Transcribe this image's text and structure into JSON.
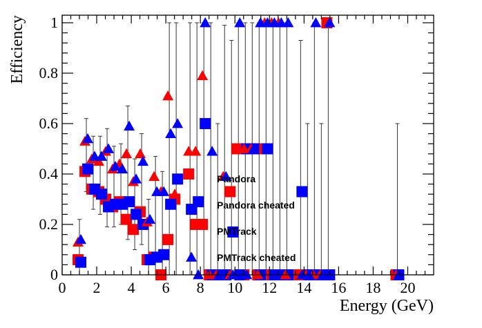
{
  "chart_data": {
    "type": "scatter",
    "title": "",
    "xlabel": "Energy (GeV)",
    "ylabel": "Efficiency",
    "xlim": [
      0,
      21.5
    ],
    "ylim": [
      0,
      1.03
    ],
    "xticks": [
      0,
      2,
      4,
      6,
      8,
      10,
      12,
      14,
      16,
      18,
      20
    ],
    "xtick_labels": [
      "0",
      "2",
      "4",
      "6",
      "8",
      "10",
      "12",
      "14",
      "16",
      "18",
      "20"
    ],
    "yticks": [
      0,
      0.2,
      0.4,
      0.6,
      0.8,
      1
    ],
    "ytick_labels": [
      "0",
      "0.2",
      "0.4",
      "0.6",
      "0.8",
      "1"
    ],
    "grid": false,
    "legend_position": "center",
    "series": [
      {
        "name": "Pandora",
        "marker": "triangle",
        "color": "#ff0000",
        "x": [
          1.0,
          1.4,
          1.8,
          2.2,
          2.6,
          3.0,
          3.4,
          3.8,
          4.2,
          4.6,
          5.0,
          5.4,
          5.8,
          6.2,
          6.6,
          7.4,
          7.8,
          8.2,
          8.6,
          9.0,
          9.4,
          9.8,
          10.2,
          10.6,
          11.0,
          11.4,
          11.8,
          12.2,
          12.6,
          13.0,
          13.8,
          14.2,
          14.6,
          15.0,
          15.4,
          19.4
        ],
        "y": [
          0.13,
          0.53,
          0.46,
          0.45,
          0.49,
          0.42,
          0.44,
          0.48,
          0.37,
          0.48,
          0.21,
          0.39,
          0.33,
          0.71,
          0.32,
          0.49,
          0.49,
          0.79,
          0.0,
          0.0,
          0.39,
          0.0,
          0.5,
          0.5,
          0.5,
          0.0,
          1.0,
          1.0,
          1.0,
          0.0,
          0.0,
          0.0,
          0.0,
          0.0,
          1.0,
          0.0
        ]
      },
      {
        "name": "Pandora cheated",
        "marker": "triangle",
        "color": "#0000ff",
        "x": [
          1.0,
          1.4,
          1.8,
          2.2,
          2.6,
          3.0,
          3.4,
          3.8,
          4.2,
          4.6,
          5.0,
          5.4,
          5.8,
          6.2,
          6.6,
          7.4,
          7.8,
          8.2,
          8.6,
          9.0,
          9.4,
          9.8,
          10.2,
          10.6,
          11.0,
          11.4,
          11.8,
          12.2,
          12.6,
          13.0,
          13.8,
          14.2,
          14.6,
          15.0,
          15.4,
          19.4
        ],
        "y": [
          0.14,
          0.54,
          0.47,
          0.47,
          0.5,
          0.43,
          0.42,
          0.59,
          0.38,
          0.45,
          0.22,
          0.33,
          0.33,
          0.56,
          0.6,
          0.07,
          0.0,
          1.0,
          0.49,
          0.0,
          0.39,
          0.0,
          1.0,
          0.0,
          0.5,
          1.0,
          1.0,
          1.0,
          1.0,
          1.0,
          0.0,
          0.0,
          1.0,
          0.0,
          1.0,
          0.0
        ]
      },
      {
        "name": "PMTrack",
        "marker": "square",
        "color": "#ff0000",
        "x": [
          1.0,
          1.4,
          1.8,
          2.2,
          2.6,
          3.0,
          3.4,
          3.8,
          4.2,
          4.6,
          5.0,
          5.4,
          5.8,
          6.2,
          6.6,
          7.4,
          7.8,
          8.2,
          8.6,
          9.0,
          9.4,
          9.8,
          10.2,
          10.6,
          11.0,
          11.4,
          11.8,
          12.2,
          12.6,
          13.0,
          13.8,
          14.2,
          14.6,
          15.0,
          15.4,
          19.4
        ],
        "y": [
          0.06,
          0.41,
          0.34,
          0.33,
          0.3,
          0.27,
          0.29,
          0.22,
          0.18,
          0.25,
          0.06,
          0.07,
          0.0,
          0.14,
          0.3,
          0.4,
          0.2,
          0.2,
          0.0,
          0.0,
          0.0,
          0.33,
          0.5,
          0.0,
          0.5,
          0.0,
          0.5,
          0.0,
          0.0,
          0.0,
          0.0,
          0.0,
          0.0,
          0.0,
          1.0,
          0.0
        ]
      },
      {
        "name": "PMTrack cheated",
        "marker": "square",
        "color": "#0000ff",
        "x": [
          1.0,
          1.4,
          1.8,
          2.2,
          2.6,
          3.0,
          3.4,
          3.8,
          4.2,
          4.6,
          5.0,
          5.4,
          5.8,
          6.2,
          6.6,
          7.4,
          7.8,
          8.2,
          8.6,
          9.0,
          9.4,
          9.8,
          10.2,
          10.6,
          11.0,
          11.4,
          11.8,
          12.2,
          12.6,
          13.0,
          13.8,
          14.2,
          14.6,
          15.0,
          15.4,
          19.4
        ],
        "y": [
          0.05,
          0.42,
          0.34,
          0.32,
          0.27,
          0.28,
          0.28,
          0.29,
          0.24,
          0.2,
          0.06,
          0.07,
          0.08,
          0.28,
          0.38,
          0.26,
          0.29,
          0.6,
          0.0,
          0.0,
          0.0,
          0.17,
          0.0,
          0.5,
          0.5,
          0.0,
          0.5,
          0.0,
          0.0,
          0.0,
          0.33,
          0.0,
          0.0,
          0.0,
          0.0,
          0.0
        ]
      }
    ]
  }
}
